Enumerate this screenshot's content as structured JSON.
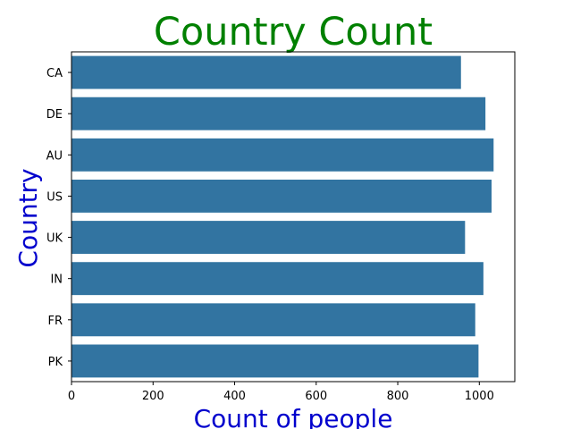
{
  "chart_data": {
    "type": "bar",
    "orientation": "horizontal",
    "title": "Country Count",
    "xlabel": "Count of people",
    "ylabel": "Country",
    "categories": [
      "CA",
      "DE",
      "AU",
      "US",
      "UK",
      "IN",
      "FR",
      "PK"
    ],
    "values": [
      955,
      1015,
      1035,
      1030,
      965,
      1010,
      990,
      998
    ],
    "xlim": [
      0,
      1087
    ],
    "xticks": [
      0,
      200,
      400,
      600,
      800,
      1000
    ],
    "grid": false,
    "legend": false
  },
  "colors": {
    "bar": "#3274a1",
    "title": "#008000",
    "axis_label": "#0000cd",
    "axis": "#000000"
  }
}
